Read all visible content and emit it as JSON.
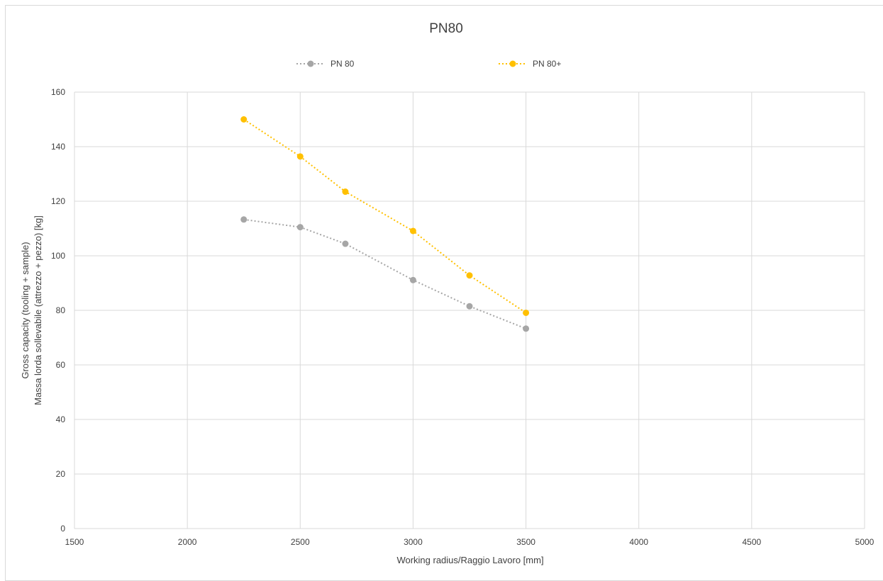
{
  "chart_data": {
    "type": "line",
    "title": "PN80",
    "xlabel": "Working radius/Raggio Lavoro [mm]",
    "ylabel": [
      "Gross capacity (tooling + sample)",
      "Massa lorda sollevabile (attrezzo + pezzo) [kg]"
    ],
    "xlim": [
      1500,
      5000
    ],
    "ylim": [
      0,
      160
    ],
    "xticks": [
      1500,
      2000,
      2500,
      3000,
      3500,
      4000,
      4500,
      5000
    ],
    "yticks": [
      0,
      20,
      40,
      60,
      80,
      100,
      120,
      140,
      160
    ],
    "grid": true,
    "legend_position": "top",
    "series": [
      {
        "name": "PN 80",
        "color": "#a6a6a6",
        "line_style": "dotted",
        "marker": "circle",
        "points": [
          [
            2250,
            113.3
          ],
          [
            2500,
            110.5
          ],
          [
            2700,
            104.4
          ],
          [
            3000,
            91.1
          ],
          [
            3250,
            81.5
          ],
          [
            3500,
            73.3
          ]
        ]
      },
      {
        "name": "PN 80+",
        "color": "#ffc000",
        "line_style": "dotted",
        "marker": "circle",
        "points": [
          [
            2250,
            150.0
          ],
          [
            2500,
            136.4
          ],
          [
            2700,
            123.5
          ],
          [
            3000,
            109.1
          ],
          [
            3250,
            92.8
          ],
          [
            3500,
            79.1
          ]
        ]
      }
    ]
  }
}
